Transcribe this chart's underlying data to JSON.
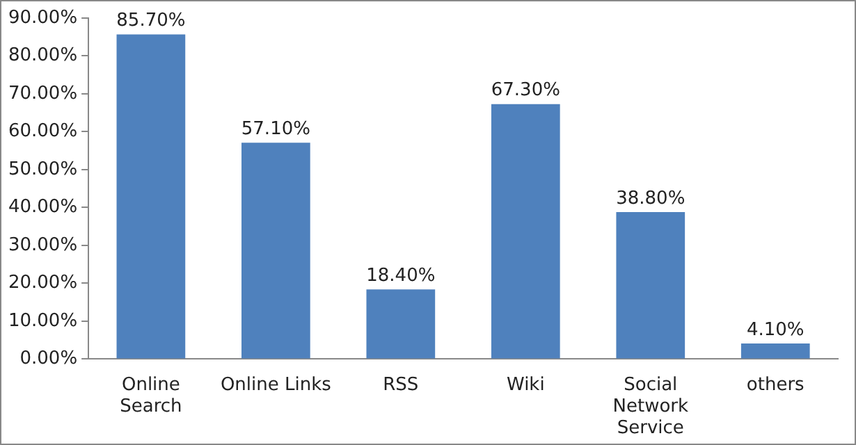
{
  "chart_data": {
    "type": "bar",
    "categories": [
      "Online\nSearch",
      "Online Links",
      "RSS",
      "Wiki",
      "Social\nNetwork\nService",
      "others"
    ],
    "values": [
      85.7,
      57.1,
      18.4,
      67.3,
      38.8,
      4.1
    ],
    "value_labels": [
      "85.70%",
      "57.10%",
      "18.40%",
      "67.30%",
      "38.80%",
      "4.10%"
    ],
    "color": "#4f81bd",
    "ylim": [
      0,
      90
    ],
    "yticks": [
      {
        "value": 0,
        "label": "0.00%"
      },
      {
        "value": 10,
        "label": "10.00%"
      },
      {
        "value": 20,
        "label": "20.00%"
      },
      {
        "value": 30,
        "label": "30.00%"
      },
      {
        "value": 40,
        "label": "40.00%"
      },
      {
        "value": 50,
        "label": "50.00%"
      },
      {
        "value": 60,
        "label": "60.00%"
      },
      {
        "value": 70,
        "label": "70.00%"
      },
      {
        "value": 80,
        "label": "80.00%"
      },
      {
        "value": 90,
        "label": "90.00%"
      }
    ],
    "grid": false,
    "legend": false
  }
}
